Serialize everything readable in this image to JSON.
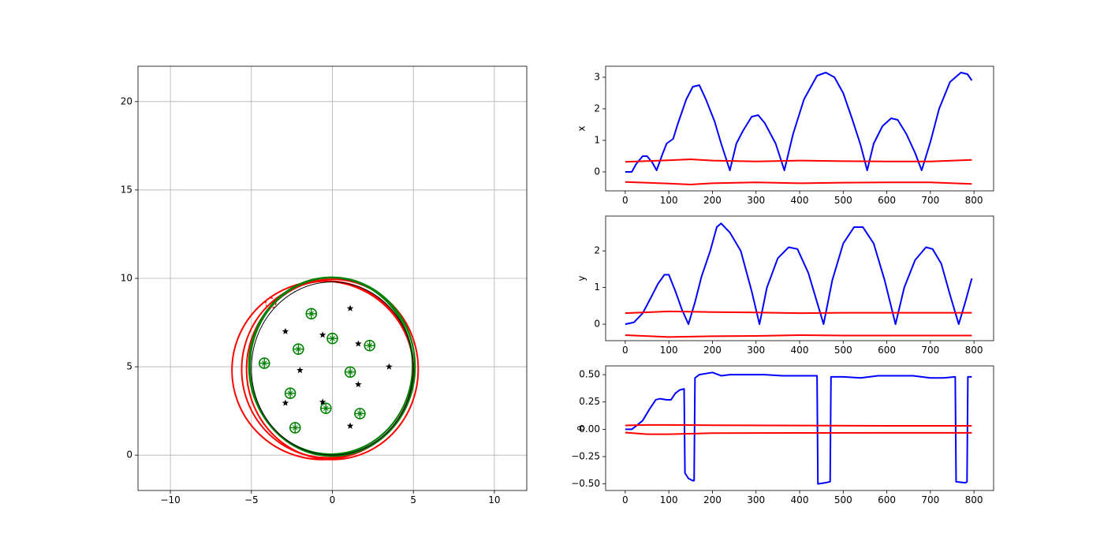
{
  "chart_data": [
    {
      "id": "map",
      "type": "scatter",
      "title": "",
      "xlabel": "",
      "ylabel": "",
      "xlim": [
        -12,
        12
      ],
      "ylim": [
        -2,
        22
      ],
      "xticks": [
        -10,
        -5,
        0,
        5,
        10
      ],
      "yticks": [
        0,
        5,
        10,
        15,
        20
      ],
      "xtick_labels": [
        "−10",
        "−5",
        "0",
        "5",
        "10"
      ],
      "ytick_labels": [
        "0",
        "5",
        "10",
        "15",
        "20"
      ],
      "grid": true,
      "colors": {
        "true_path": "#000000",
        "estimated_path": "#008000",
        "uncertainty": "#ff0000",
        "landmark_true": "#000000",
        "landmark_estimate": "#008000"
      },
      "landmarks_true": [
        [
          1.1,
          8.3
        ],
        [
          -2.9,
          7.0
        ],
        [
          -0.6,
          6.8
        ],
        [
          1.6,
          6.3
        ],
        [
          -2.0,
          4.8
        ],
        [
          3.5,
          5.0
        ],
        [
          1.6,
          4.0
        ],
        [
          -2.9,
          2.95
        ],
        [
          -0.6,
          3.0
        ],
        [
          1.1,
          1.65
        ]
      ],
      "landmarks_estimated": [
        [
          -1.3,
          8.0
        ],
        [
          0.0,
          6.6
        ],
        [
          2.3,
          6.2
        ],
        [
          -2.1,
          6.0
        ],
        [
          -4.2,
          5.2
        ],
        [
          1.1,
          4.7
        ],
        [
          -2.6,
          3.5
        ],
        [
          -0.4,
          2.65
        ],
        [
          1.7,
          2.35
        ],
        [
          -2.3,
          1.55
        ]
      ],
      "landmark_marker_uncertain": [
        -3.8,
        8.6
      ],
      "true_path": {
        "cx": 0.0,
        "cy": 4.9,
        "rx": 5.0,
        "ry": 4.9
      },
      "estimated_path": [
        {
          "cx": 0.0,
          "cy": 5.0,
          "rx": 5.1,
          "ry": 5.05
        },
        {
          "cx": -0.1,
          "cy": 5.05,
          "rx": 5.05,
          "ry": 5.0
        }
      ],
      "uncertainty_ellipses": [
        {
          "cx": -0.6,
          "cy": 4.8,
          "rx": 5.6,
          "ry": 5.05
        },
        {
          "cx": 0.0,
          "cy": 4.85,
          "rx": 5.3,
          "ry": 5.1
        },
        {
          "cx": -0.3,
          "cy": 4.85,
          "rx": 5.3,
          "ry": 5.0
        }
      ]
    },
    {
      "id": "x-plot",
      "type": "line",
      "xlabel": "",
      "ylabel": "x",
      "xlim": [
        -45,
        845
      ],
      "ylim": [
        -0.6,
        3.35
      ],
      "xticks": [
        0,
        100,
        200,
        300,
        400,
        500,
        600,
        700,
        800
      ],
      "yticks": [
        0,
        1,
        2,
        3
      ],
      "grid": false,
      "series": [
        {
          "color": "#0000ff",
          "points": [
            [
              0,
              0
            ],
            [
              15,
              0.0
            ],
            [
              25,
              0.25
            ],
            [
              40,
              0.5
            ],
            [
              50,
              0.5
            ],
            [
              62,
              0.3
            ],
            [
              72,
              0.05
            ],
            [
              85,
              0.55
            ],
            [
              95,
              0.9
            ],
            [
              110,
              1.05
            ],
            [
              120,
              1.5
            ],
            [
              140,
              2.3
            ],
            [
              155,
              2.7
            ],
            [
              170,
              2.75
            ],
            [
              185,
              2.3
            ],
            [
              205,
              1.6
            ],
            [
              220,
              0.9
            ],
            [
              240,
              0.05
            ],
            [
              255,
              0.9
            ],
            [
              270,
              1.3
            ],
            [
              290,
              1.75
            ],
            [
              305,
              1.8
            ],
            [
              320,
              1.55
            ],
            [
              345,
              0.9
            ],
            [
              365,
              0.05
            ],
            [
              385,
              1.2
            ],
            [
              410,
              2.3
            ],
            [
              440,
              3.05
            ],
            [
              460,
              3.15
            ],
            [
              480,
              3.0
            ],
            [
              500,
              2.5
            ],
            [
              520,
              1.7
            ],
            [
              540,
              0.85
            ],
            [
              555,
              0.05
            ],
            [
              570,
              0.9
            ],
            [
              590,
              1.45
            ],
            [
              610,
              1.7
            ],
            [
              625,
              1.65
            ],
            [
              645,
              1.2
            ],
            [
              665,
              0.6
            ],
            [
              680,
              0.05
            ],
            [
              700,
              0.95
            ],
            [
              720,
              2.0
            ],
            [
              745,
              2.85
            ],
            [
              770,
              3.15
            ],
            [
              785,
              3.1
            ],
            [
              795,
              2.9
            ]
          ]
        },
        {
          "color": "#ff0000",
          "points": [
            [
              0,
              0.32
            ],
            [
              100,
              0.37
            ],
            [
              150,
              0.4
            ],
            [
              200,
              0.36
            ],
            [
              300,
              0.33
            ],
            [
              400,
              0.36
            ],
            [
              500,
              0.34
            ],
            [
              600,
              0.33
            ],
            [
              700,
              0.33
            ],
            [
              795,
              0.38
            ]
          ]
        },
        {
          "color": "#ff0000",
          "points": [
            [
              0,
              -0.32
            ],
            [
              100,
              -0.37
            ],
            [
              150,
              -0.4
            ],
            [
              200,
              -0.36
            ],
            [
              300,
              -0.33
            ],
            [
              400,
              -0.36
            ],
            [
              500,
              -0.34
            ],
            [
              600,
              -0.33
            ],
            [
              700,
              -0.33
            ],
            [
              795,
              -0.38
            ]
          ]
        }
      ]
    },
    {
      "id": "y-plot",
      "type": "line",
      "xlabel": "",
      "ylabel": "y",
      "xlim": [
        -45,
        845
      ],
      "ylim": [
        -0.45,
        2.95
      ],
      "xticks": [
        0,
        100,
        200,
        300,
        400,
        500,
        600,
        700,
        800
      ],
      "yticks": [
        0,
        1,
        2
      ],
      "grid": false,
      "series": [
        {
          "color": "#0000ff",
          "points": [
            [
              0,
              0
            ],
            [
              20,
              0.05
            ],
            [
              40,
              0.3
            ],
            [
              60,
              0.75
            ],
            [
              75,
              1.1
            ],
            [
              90,
              1.35
            ],
            [
              100,
              1.35
            ],
            [
              115,
              0.9
            ],
            [
              130,
              0.4
            ],
            [
              145,
              0.0
            ],
            [
              160,
              0.6
            ],
            [
              175,
              1.3
            ],
            [
              195,
              2.0
            ],
            [
              210,
              2.65
            ],
            [
              220,
              2.75
            ],
            [
              240,
              2.5
            ],
            [
              265,
              2.0
            ],
            [
              290,
              0.9
            ],
            [
              308,
              0.0
            ],
            [
              325,
              1.0
            ],
            [
              350,
              1.8
            ],
            [
              375,
              2.1
            ],
            [
              395,
              2.05
            ],
            [
              420,
              1.4
            ],
            [
              440,
              0.6
            ],
            [
              455,
              0.0
            ],
            [
              475,
              1.2
            ],
            [
              500,
              2.2
            ],
            [
              525,
              2.65
            ],
            [
              545,
              2.65
            ],
            [
              570,
              2.2
            ],
            [
              595,
              1.2
            ],
            [
              620,
              0.0
            ],
            [
              640,
              1.0
            ],
            [
              665,
              1.75
            ],
            [
              690,
              2.1
            ],
            [
              705,
              2.05
            ],
            [
              725,
              1.65
            ],
            [
              745,
              0.8
            ],
            [
              765,
              0.0
            ],
            [
              780,
              0.6
            ],
            [
              795,
              1.25
            ]
          ]
        },
        {
          "color": "#ff0000",
          "points": [
            [
              0,
              0.3
            ],
            [
              100,
              0.35
            ],
            [
              200,
              0.33
            ],
            [
              300,
              0.32
            ],
            [
              400,
              0.3
            ],
            [
              500,
              0.31
            ],
            [
              600,
              0.31
            ],
            [
              700,
              0.31
            ],
            [
              795,
              0.31
            ]
          ]
        },
        {
          "color": "#ff0000",
          "points": [
            [
              0,
              -0.3
            ],
            [
              100,
              -0.35
            ],
            [
              200,
              -0.33
            ],
            [
              300,
              -0.32
            ],
            [
              400,
              -0.3
            ],
            [
              500,
              -0.31
            ],
            [
              600,
              -0.31
            ],
            [
              700,
              -0.31
            ],
            [
              795,
              -0.31
            ]
          ]
        }
      ]
    },
    {
      "id": "theta-plot",
      "type": "line",
      "xlabel": "",
      "ylabel": "θ",
      "xlim": [
        -45,
        845
      ],
      "ylim": [
        -0.56,
        0.58
      ],
      "xticks": [
        0,
        100,
        200,
        300,
        400,
        500,
        600,
        700,
        800
      ],
      "yticks": [
        -0.5,
        -0.25,
        0.0,
        0.25,
        0.5
      ],
      "ytick_labels": [
        "−0.50",
        "−0.25",
        "0.00",
        "0.25",
        "0.50"
      ],
      "grid": false,
      "series": [
        {
          "color": "#0000ff",
          "points": [
            [
              0,
              0.0
            ],
            [
              15,
              0.0
            ],
            [
              25,
              0.03
            ],
            [
              40,
              0.08
            ],
            [
              55,
              0.18
            ],
            [
              70,
              0.27
            ],
            [
              80,
              0.28
            ],
            [
              95,
              0.27
            ],
            [
              105,
              0.27
            ],
            [
              115,
              0.33
            ],
            [
              125,
              0.36
            ],
            [
              135,
              0.37
            ],
            [
              137,
              -0.4
            ],
            [
              145,
              -0.45
            ],
            [
              155,
              -0.47
            ],
            [
              158,
              -0.47
            ],
            [
              160,
              0.47
            ],
            [
              170,
              0.5
            ],
            [
              200,
              0.52
            ],
            [
              220,
              0.49
            ],
            [
              240,
              0.5
            ],
            [
              280,
              0.5
            ],
            [
              320,
              0.5
            ],
            [
              360,
              0.49
            ],
            [
              400,
              0.49
            ],
            [
              440,
              0.49
            ],
            [
              442,
              -0.5
            ],
            [
              458,
              -0.49
            ],
            [
              470,
              -0.48
            ],
            [
              472,
              0.48
            ],
            [
              500,
              0.48
            ],
            [
              540,
              0.47
            ],
            [
              580,
              0.49
            ],
            [
              620,
              0.49
            ],
            [
              660,
              0.49
            ],
            [
              700,
              0.47
            ],
            [
              730,
              0.47
            ],
            [
              757,
              0.48
            ],
            [
              759,
              -0.48
            ],
            [
              780,
              -0.49
            ],
            [
              784,
              -0.48
            ],
            [
              786,
              0.48
            ],
            [
              795,
              0.48
            ]
          ]
        },
        {
          "color": "#ff0000",
          "points": [
            [
              0,
              0.035
            ],
            [
              50,
              0.04
            ],
            [
              100,
              0.04
            ],
            [
              200,
              0.037
            ],
            [
              400,
              0.034
            ],
            [
              600,
              0.032
            ],
            [
              795,
              0.032
            ]
          ]
        },
        {
          "color": "#ff0000",
          "points": [
            [
              0,
              -0.03
            ],
            [
              50,
              -0.045
            ],
            [
              100,
              -0.045
            ],
            [
              200,
              -0.035
            ],
            [
              400,
              -0.033
            ],
            [
              600,
              -0.032
            ],
            [
              795,
              -0.032
            ]
          ]
        }
      ]
    }
  ]
}
